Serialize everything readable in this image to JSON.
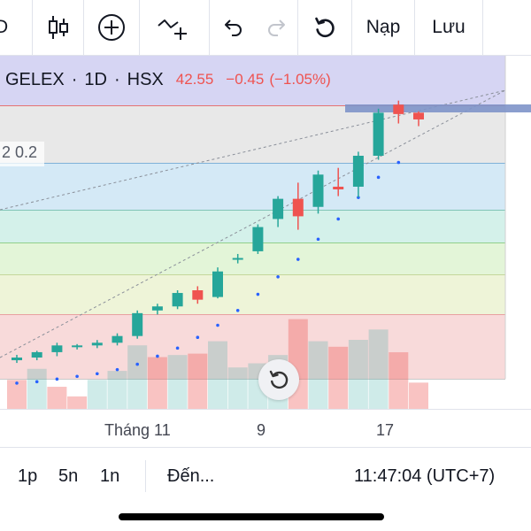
{
  "toolbar": {
    "partial_left_label": "D",
    "indicators_icon": "candlestick-icon",
    "add_icon": "plus-circle-icon",
    "drawing_icon": "trend-line-plus-icon",
    "undo_icon": "undo-icon",
    "redo_icon": "redo-icon",
    "refresh_icon": "rotate-left-icon",
    "load_label": "Nạp",
    "save_label": "Lưu"
  },
  "legend": {
    "symbol": "GELEX",
    "interval": "1D",
    "exchange": "HSX",
    "price": "42.55",
    "change": "−0.45",
    "change_pct": "(−1.05%)"
  },
  "fib_label": "2 0.2",
  "x_axis": {
    "labels": [
      "Tháng 11",
      "9",
      "17"
    ]
  },
  "bottombar": {
    "ranges": [
      "1p",
      "5n",
      "1n"
    ],
    "goto_label": "Đến...",
    "clock": "11:47:04 (UTC+7)"
  },
  "colors": {
    "up": "#26a69a",
    "down": "#ef5350",
    "accent": "#2962ff"
  },
  "chart_data": {
    "type": "candlestick",
    "candles_ohlc": [
      [
        27.3,
        27.7,
        27.1,
        27.5
      ],
      [
        27.5,
        28.0,
        27.3,
        27.9
      ],
      [
        27.9,
        28.6,
        27.6,
        28.4
      ],
      [
        28.3,
        28.5,
        28.1,
        28.4
      ],
      [
        28.4,
        28.8,
        28.2,
        28.6
      ],
      [
        28.6,
        29.3,
        28.4,
        29.1
      ],
      [
        29.1,
        31.0,
        28.9,
        30.8
      ],
      [
        31.0,
        31.5,
        30.7,
        31.3
      ],
      [
        31.3,
        32.5,
        31.1,
        32.3
      ],
      [
        32.5,
        32.8,
        31.5,
        31.8
      ],
      [
        32.0,
        34.2,
        31.9,
        33.9
      ],
      [
        34.8,
        35.2,
        34.5,
        34.9
      ],
      [
        35.4,
        37.4,
        35.2,
        37.2
      ],
      [
        37.8,
        39.5,
        37.2,
        39.3
      ],
      [
        39.3,
        40.5,
        37.0,
        38.0
      ],
      [
        38.7,
        41.4,
        38.2,
        41.1
      ],
      [
        40.2,
        41.6,
        39.5,
        40.0
      ],
      [
        40.2,
        42.8,
        39.4,
        42.5
      ],
      [
        42.5,
        46.0,
        42.2,
        45.7
      ],
      [
        46.3,
        46.6,
        44.9,
        45.6
      ],
      [
        45.7,
        45.8,
        44.7,
        45.2
      ]
    ],
    "parabolic_sar": [
      25.6,
      25.7,
      25.9,
      26.1,
      26.3,
      26.6,
      27.0,
      27.6,
      28.2,
      29.0,
      29.9,
      31.0,
      32.2,
      33.5,
      34.8,
      36.3,
      37.8,
      39.4,
      40.9,
      42.0
    ],
    "volume_up": [
      0,
      1,
      0,
      0,
      1,
      1,
      1,
      0,
      1,
      0,
      1,
      1,
      1,
      1,
      0,
      1,
      0,
      1,
      1,
      0,
      0
    ],
    "volume_rel": [
      0.42,
      0.58,
      0.32,
      0.18,
      0.42,
      0.55,
      0.92,
      0.75,
      0.78,
      0.8,
      0.98,
      0.6,
      0.66,
      0.78,
      1.3,
      0.98,
      0.9,
      1.0,
      1.15,
      0.82,
      0.38
    ]
  }
}
